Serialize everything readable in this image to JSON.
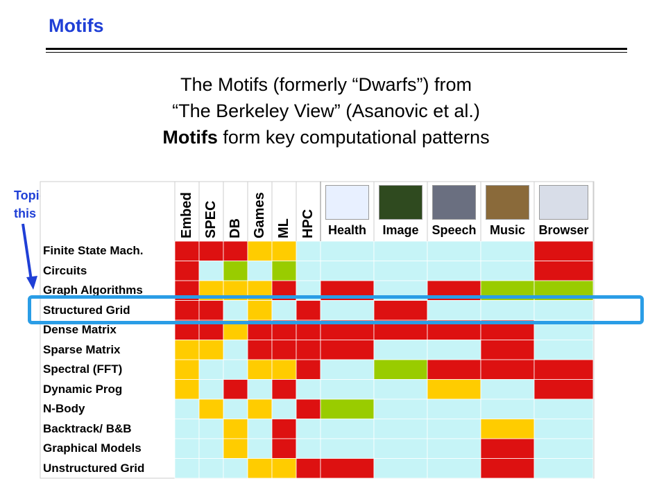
{
  "slide": {
    "title": "Motifs",
    "heading_line1": "The Motifs (formerly “Dwarfs”) from",
    "heading_line2": "“The Berkeley View” (Asanovic et al.)",
    "heading_line3_bold": "Motifs",
    "heading_line3_rest": " form key computational  patterns"
  },
  "callout": {
    "line1": "Topic of",
    "line2": "this  lecture"
  },
  "colors": {
    "red": "#dd1111",
    "yellow": "#ffcc00",
    "green": "#99cc00",
    "light": "#c6f4f7",
    "highlight": "#2a9de6",
    "title_blue": "#1f3fd6"
  },
  "table": {
    "vertical_columns": [
      "Embed",
      "SPEC",
      "DB",
      "Games",
      "ML",
      "HPC"
    ],
    "app_columns": [
      "Health",
      "Image",
      "Speech",
      "Music",
      "Browser"
    ],
    "app_icons": [
      "health-image-icon",
      "flower-image-icon",
      "speech-lab-photo-icon",
      "music-wreath-icon",
      "browser-screenshot-icon"
    ],
    "rows": [
      {
        "label": "Finite State Mach.",
        "cells": [
          "R",
          "R",
          "R",
          "Y",
          "Y",
          "L",
          "L",
          "L",
          "L",
          "L",
          "R"
        ]
      },
      {
        "label": "Circuits",
        "cells": [
          "R",
          "L",
          "G",
          "L",
          "G",
          "L",
          "L",
          "L",
          "L",
          "L",
          "R"
        ]
      },
      {
        "label": "Graph Algorithms",
        "cells": [
          "R",
          "Y",
          "Y",
          "Y",
          "R",
          "L",
          "R",
          "L",
          "R",
          "G",
          "G"
        ]
      },
      {
        "label": "Structured Grid",
        "cells": [
          "R",
          "R",
          "L",
          "Y",
          "L",
          "R",
          "L",
          "R",
          "L",
          "L",
          "L"
        ]
      },
      {
        "label": "Dense Matrix",
        "cells": [
          "R",
          "R",
          "Y",
          "R",
          "R",
          "R",
          "R",
          "R",
          "R",
          "R",
          "L"
        ]
      },
      {
        "label": "Sparse Matrix",
        "cells": [
          "Y",
          "Y",
          "L",
          "R",
          "R",
          "R",
          "R",
          "L",
          "L",
          "R",
          "L"
        ]
      },
      {
        "label": "Spectral (FFT)",
        "cells": [
          "Y",
          "L",
          "L",
          "Y",
          "Y",
          "R",
          "L",
          "G",
          "R",
          "R",
          "R"
        ]
      },
      {
        "label": "Dynamic Prog",
        "cells": [
          "Y",
          "L",
          "R",
          "L",
          "R",
          "L",
          "L",
          "L",
          "Y",
          "L",
          "R"
        ]
      },
      {
        "label": "N-Body",
        "cells": [
          "L",
          "Y",
          "L",
          "Y",
          "L",
          "R",
          "G",
          "L",
          "L",
          "L",
          "L"
        ]
      },
      {
        "label": "Backtrack/ B&B",
        "cells": [
          "L",
          "L",
          "Y",
          "L",
          "R",
          "L",
          "L",
          "L",
          "L",
          "Y",
          "L"
        ]
      },
      {
        "label": "Graphical Models",
        "cells": [
          "L",
          "L",
          "Y",
          "L",
          "R",
          "L",
          "L",
          "L",
          "L",
          "R",
          "L"
        ]
      },
      {
        "label": "Unstructured Grid",
        "cells": [
          "L",
          "L",
          "L",
          "Y",
          "Y",
          "R",
          "R",
          "L",
          "L",
          "R",
          "L"
        ]
      }
    ]
  }
}
